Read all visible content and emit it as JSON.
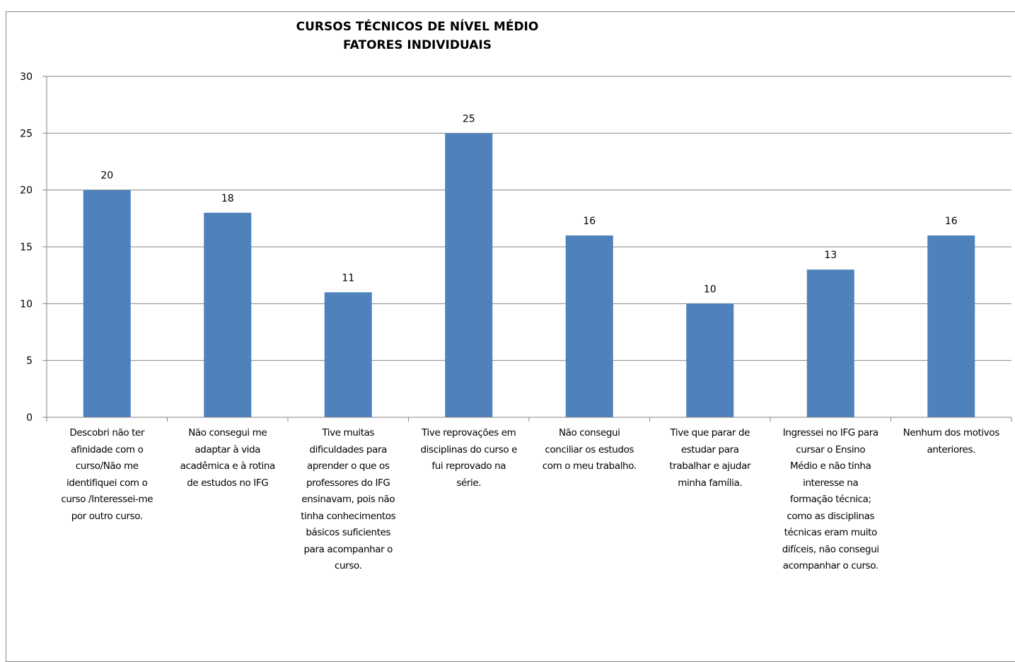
{
  "chart_data": {
    "type": "bar",
    "title": [
      "CURSOS TÉCNICOS DE NÍVEL MÉDIO",
      "FATORES INDIVIDUAIS"
    ],
    "xlabel": "",
    "ylabel": "",
    "ylim": [
      0,
      30
    ],
    "yticks": [
      0,
      5,
      10,
      15,
      20,
      25,
      30
    ],
    "grid": true,
    "bar_color": "#4F81BD",
    "gridline_color": "#868686",
    "categories": [
      [
        "Descobri não ter",
        "afinidade com o",
        "curso/Não me",
        "identifiquei com o",
        "curso /Interessei-me",
        "por outro curso."
      ],
      [
        "Não consegui me",
        "adaptar à vida",
        "acadêmica e à rotina",
        "de estudos no IFG"
      ],
      [
        "Tive muitas",
        "dificuldades para",
        "aprender o que os",
        "professores do IFG",
        "ensinavam, pois não",
        "tinha conhecimentos",
        "básicos suficientes",
        "para acompanhar o",
        "curso."
      ],
      [
        "Tive reprovações em",
        "disciplinas do curso e",
        "fui reprovado na",
        "série."
      ],
      [
        "Não consegui",
        "conciliar os estudos",
        "com o meu trabalho."
      ],
      [
        "Tive que parar de",
        "estudar para",
        "trabalhar e ajudar",
        "minha família."
      ],
      [
        "Ingressei no IFG para",
        "cursar o Ensino",
        "Médio e não tinha",
        "interesse na",
        "formação técnica;",
        "como as disciplinas",
        "técnicas eram muito",
        "difíceis, não consegui",
        "acompanhar o curso."
      ],
      [
        "Nenhum dos motivos",
        "anteriores."
      ]
    ],
    "values": [
      20,
      18,
      11,
      25,
      16,
      10,
      13,
      16
    ]
  }
}
